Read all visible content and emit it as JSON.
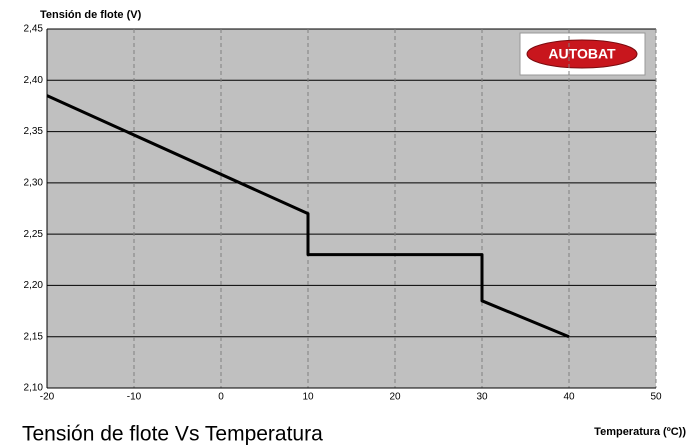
{
  "chart_data": {
    "type": "line",
    "title": "Tensión de flote Vs Temperatura",
    "y_label": "Tensión de flote (V)",
    "x_label": "Temperatura (ºC))",
    "logo": "AUTOBAT",
    "x": [
      -20,
      10,
      10,
      30,
      30,
      40
    ],
    "series": [
      {
        "name": "Tensión de flote",
        "color": "#000000",
        "values": [
          2.385,
          2.27,
          2.23,
          2.23,
          2.185,
          2.15
        ]
      }
    ],
    "xlim": [
      -20,
      50
    ],
    "xticks": [
      -20,
      -10,
      0,
      10,
      20,
      30,
      40,
      50
    ],
    "ylim": [
      2.1,
      2.45
    ],
    "yticks": [
      {
        "value": 2.1,
        "label": "2,10"
      },
      {
        "value": 2.15,
        "label": "2,15"
      },
      {
        "value": 2.2,
        "label": "2,20"
      },
      {
        "value": 2.25,
        "label": "2,25"
      },
      {
        "value": 2.3,
        "label": "2,30"
      },
      {
        "value": 2.35,
        "label": "2,35"
      },
      {
        "value": 2.4,
        "label": "2,40"
      },
      {
        "value": 2.45,
        "label": "2,45"
      }
    ],
    "grid": true
  }
}
